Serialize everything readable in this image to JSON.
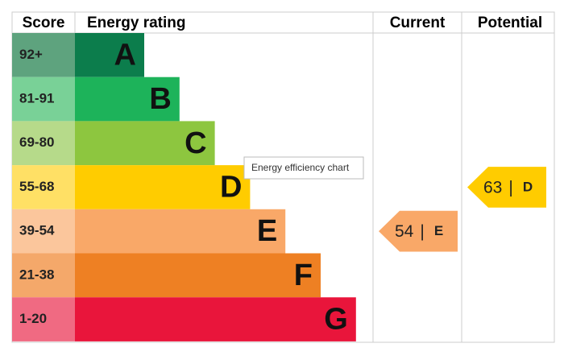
{
  "header": {
    "score": "Score",
    "rating": "Energy rating",
    "current": "Current",
    "potential": "Potential"
  },
  "bands": [
    {
      "score": "92+",
      "letter": "A",
      "color": "#0c7d4c",
      "score_color": "#5ea37e"
    },
    {
      "score": "81-91",
      "letter": "B",
      "color": "#1db35a",
      "score_color": "#79d197"
    },
    {
      "score": "69-80",
      "letter": "C",
      "color": "#8dc63f",
      "score_color": "#b6da8a"
    },
    {
      "score": "55-68",
      "letter": "D",
      "color": "#ffcc00",
      "score_color": "#ffe065"
    },
    {
      "score": "39-54",
      "letter": "E",
      "color": "#f9a868",
      "score_color": "#fbc69c"
    },
    {
      "score": "21-38",
      "letter": "F",
      "color": "#ee8023",
      "score_color": "#f4a86a"
    },
    {
      "score": "1-20",
      "letter": "G",
      "color": "#e9153b",
      "score_color": "#f06a82"
    }
  ],
  "separator": "|",
  "current": {
    "value": 54,
    "letter": "E"
  },
  "potential": {
    "value": 63,
    "letter": "D"
  },
  "tooltip": "Energy efficiency chart"
}
